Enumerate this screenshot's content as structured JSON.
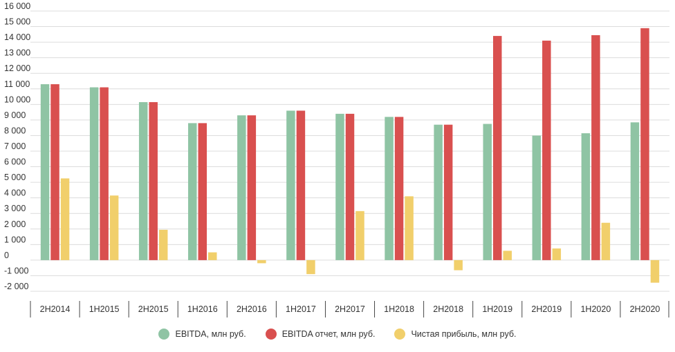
{
  "chart_data": {
    "type": "bar",
    "categories": [
      "2H2014",
      "1H2015",
      "2H2015",
      "1H2016",
      "2H2016",
      "1H2017",
      "2H2017",
      "1H2018",
      "2H2018",
      "1H2019",
      "2H2019",
      "1H2020",
      "2H2020"
    ],
    "series": [
      {
        "name": "EBITDA, млн руб.",
        "color": "#8fc4a4",
        "values": [
          11300,
          11100,
          10150,
          8800,
          9300,
          9600,
          9400,
          9200,
          8700,
          8750,
          8000,
          8150,
          8850
        ]
      },
      {
        "name": "EBITDA отчет, млн руб.",
        "color": "#d9504f",
        "values": [
          11300,
          11100,
          10150,
          8800,
          9300,
          9600,
          9400,
          9200,
          8700,
          14400,
          14100,
          14450,
          14900
        ]
      },
      {
        "name": "Чистая прибыль, млн руб.",
        "color": "#f1cf6b",
        "values": [
          5250,
          4150,
          1950,
          500,
          -200,
          -900,
          3150,
          4100,
          -650,
          600,
          750,
          2400,
          -1450
        ]
      }
    ],
    "ylim": [
      -2000,
      16000
    ],
    "yticks": [
      {
        "v": 16000,
        "label": "16 000"
      },
      {
        "v": 15000,
        "label": "15 000"
      },
      {
        "v": 14000,
        "label": "14 000"
      },
      {
        "v": 13000,
        "label": "13 000"
      },
      {
        "v": 12000,
        "label": "12 000"
      },
      {
        "v": 11000,
        "label": "11 000"
      },
      {
        "v": 10000,
        "label": "10 000"
      },
      {
        "v": 9000,
        "label": "9 000"
      },
      {
        "v": 8000,
        "label": "8 000"
      },
      {
        "v": 7000,
        "label": "7 000"
      },
      {
        "v": 6000,
        "label": "6 000"
      },
      {
        "v": 5000,
        "label": "5 000"
      },
      {
        "v": 4000,
        "label": "4 000"
      },
      {
        "v": 3000,
        "label": "3 000"
      },
      {
        "v": 2000,
        "label": "2 000"
      },
      {
        "v": 1000,
        "label": "1 000"
      },
      {
        "v": 0,
        "label": "0"
      },
      {
        "v": -1000,
        "label": "-1 000"
      },
      {
        "v": -2000,
        "label": "-2 000"
      }
    ],
    "grid": true,
    "legend_position": "bottom"
  }
}
